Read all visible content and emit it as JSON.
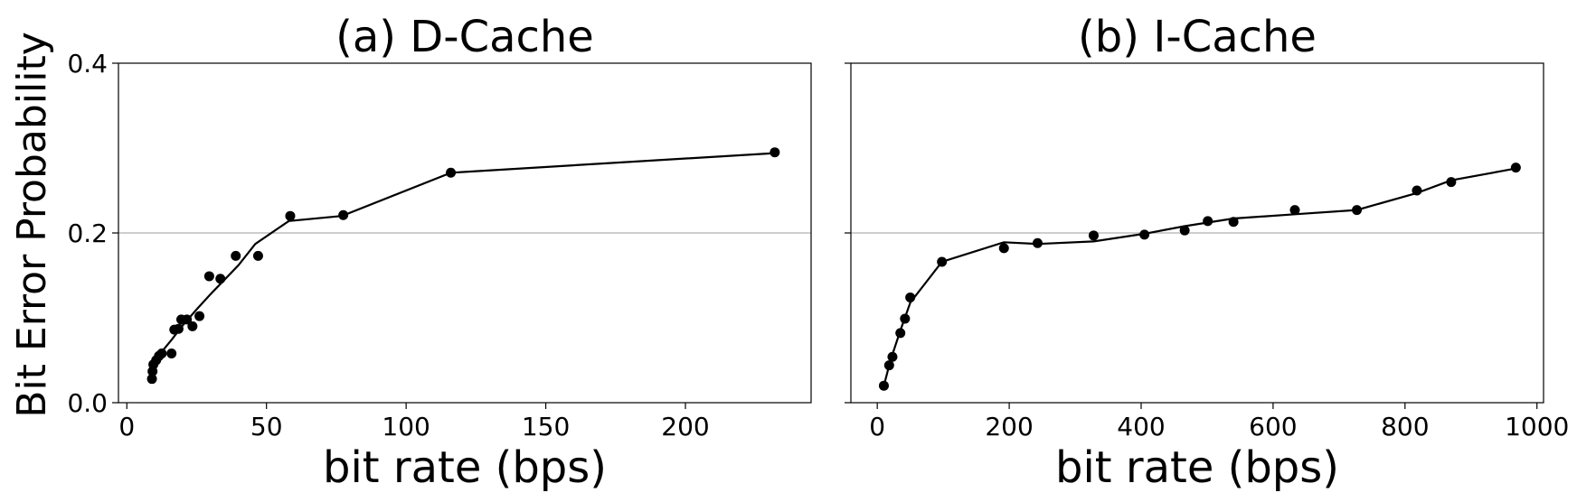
{
  "chart_data": [
    {
      "type": "scatter",
      "title": "(a) D-Cache",
      "xlabel": "bit rate (bps)",
      "ylabel": "Bit Error Probability",
      "xlim": [
        -3,
        245
      ],
      "ylim": [
        0,
        0.4
      ],
      "xticks": [
        0,
        50,
        100,
        150,
        200
      ],
      "yticks": [
        0.0,
        0.2,
        0.4
      ],
      "ytick_labels": [
        "0.0",
        "0.2",
        "0.4"
      ],
      "grid": "y-major at 0.2",
      "points": {
        "x": [
          9,
          9.2,
          9.5,
          10.5,
          11.5,
          12.5,
          16,
          17,
          18.5,
          19.5,
          21.5,
          23.5,
          26,
          29.5,
          33.5,
          39,
          47,
          58.5,
          77.5,
          116,
          232
        ],
        "y": [
          0.028,
          0.037,
          0.045,
          0.05,
          0.055,
          0.058,
          0.058,
          0.086,
          0.087,
          0.098,
          0.098,
          0.09,
          0.102,
          0.149,
          0.146,
          0.173,
          0.173,
          0.22,
          0.221,
          0.271,
          0.295
        ]
      },
      "fit_line": {
        "x": [
          9,
          12,
          16,
          20,
          25,
          30,
          35,
          40,
          46,
          58,
          77,
          116,
          232
        ],
        "y": [
          0.035,
          0.058,
          0.074,
          0.091,
          0.11,
          0.128,
          0.145,
          0.162,
          0.187,
          0.214,
          0.22,
          0.271,
          0.294
        ]
      }
    },
    {
      "type": "scatter",
      "title": "(b) I-Cache",
      "xlabel": "bit rate (bps)",
      "ylabel": "",
      "xlim": [
        -40,
        1010
      ],
      "ylim": [
        0,
        0.4
      ],
      "xticks": [
        0,
        200,
        400,
        600,
        800,
        1000
      ],
      "yticks": [
        0.0,
        0.2,
        0.4
      ],
      "ytick_labels": [
        "",
        "",
        ""
      ],
      "grid": "y-major at 0.2",
      "points": {
        "x": [
          10,
          18,
          23,
          35,
          42,
          50,
          98,
          192,
          243,
          328,
          405,
          466,
          501,
          540,
          633,
          727,
          818,
          870,
          968
        ],
        "y": [
          0.02,
          0.044,
          0.054,
          0.082,
          0.099,
          0.124,
          0.166,
          0.182,
          0.188,
          0.197,
          0.198,
          0.203,
          0.214,
          0.213,
          0.227,
          0.227,
          0.25,
          0.26,
          0.277
        ]
      },
      "fit_line": {
        "x": [
          10,
          20,
          35,
          50,
          98,
          192,
          243,
          328,
          405,
          466,
          540,
          633,
          727,
          818,
          870,
          968
        ],
        "y": [
          0.02,
          0.05,
          0.085,
          0.118,
          0.166,
          0.189,
          0.187,
          0.19,
          0.199,
          0.208,
          0.217,
          0.222,
          0.227,
          0.247,
          0.262,
          0.276
        ]
      }
    }
  ]
}
